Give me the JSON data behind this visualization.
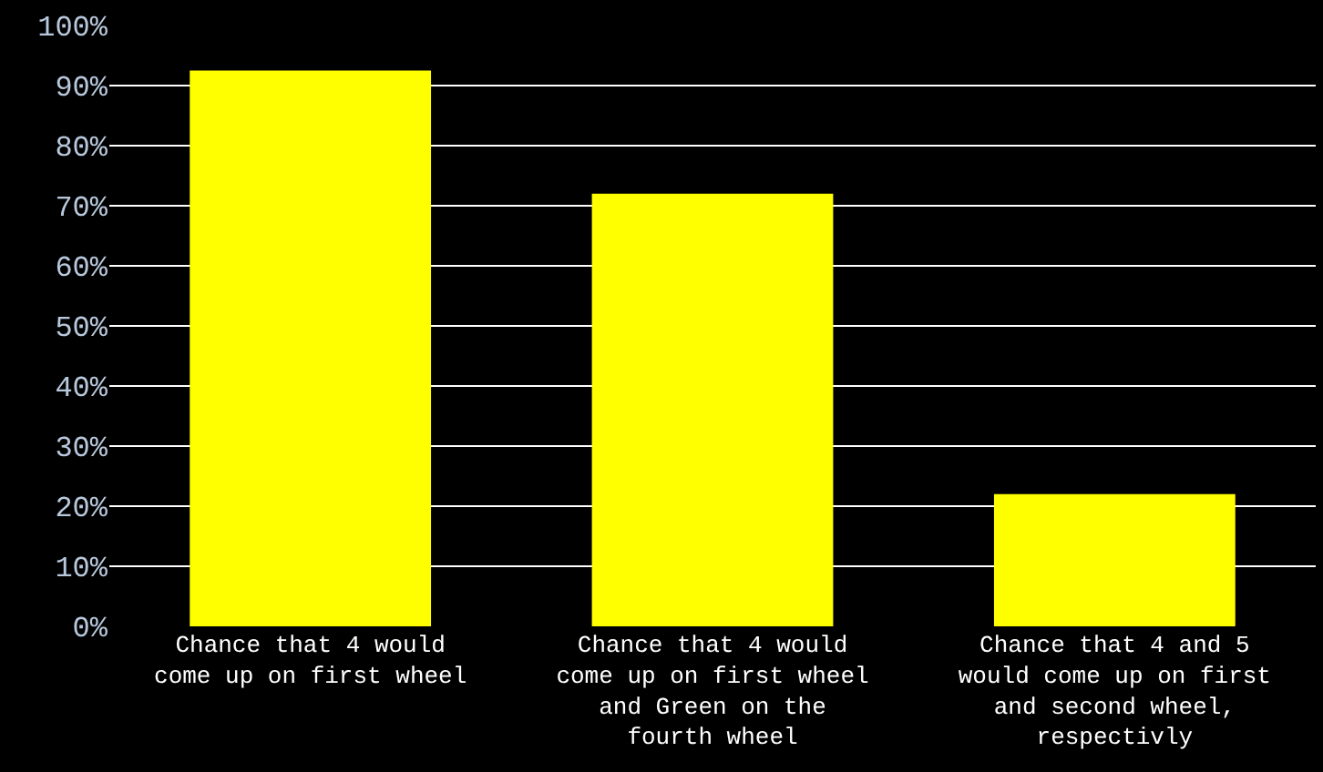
{
  "chart_data": {
    "type": "bar",
    "categories": [
      "Chance that 4 would come up on first wheel",
      "Chance that 4 would come up on first wheel and Green on the fourth wheel",
      "Chance that 4 and 5 would come up on first and second wheel, respectivly"
    ],
    "values": [
      92.5,
      72,
      22
    ],
    "color": "#ffff00",
    "ylim": [
      0,
      100
    ],
    "yticks": [
      {
        "value": 0,
        "label": "0%"
      },
      {
        "value": 10,
        "label": "10%"
      },
      {
        "value": 20,
        "label": "20%"
      },
      {
        "value": 30,
        "label": "30%"
      },
      {
        "value": 40,
        "label": "40%"
      },
      {
        "value": 50,
        "label": "50%"
      },
      {
        "value": 60,
        "label": "60%"
      },
      {
        "value": 70,
        "label": "70%"
      },
      {
        "value": 80,
        "label": "80%"
      },
      {
        "value": 90,
        "label": "90%"
      },
      {
        "value": 100,
        "label": "100%"
      }
    ],
    "grid": "y"
  }
}
